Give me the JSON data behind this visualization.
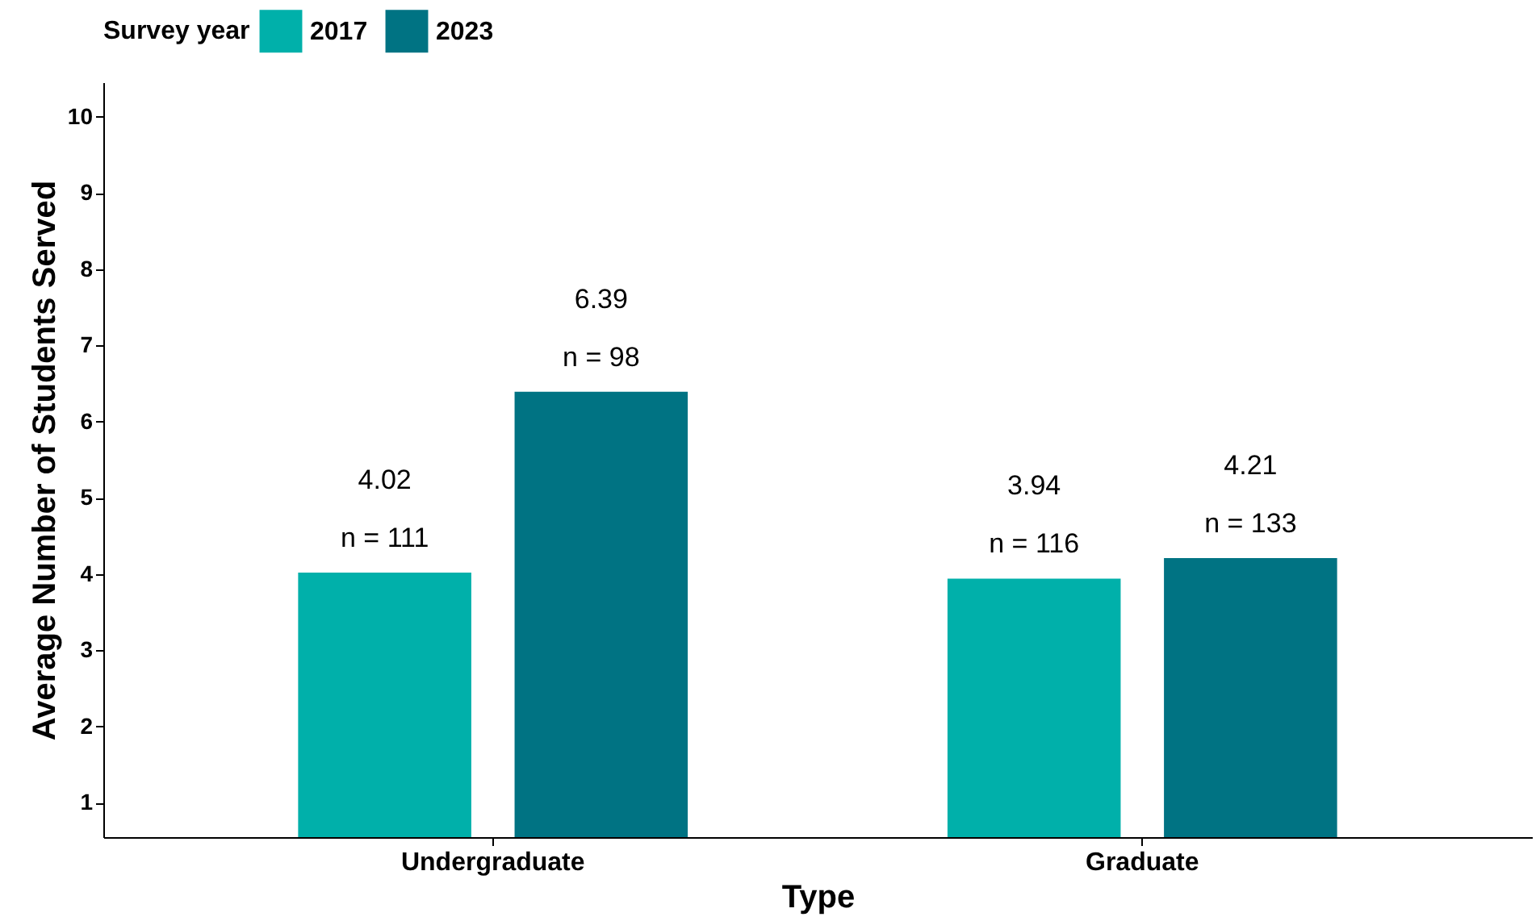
{
  "chart_data": {
    "type": "bar",
    "xlabel": "Type",
    "ylabel": "Average Number of Students Served",
    "legend_title": "Survey year",
    "legend": "top",
    "categories": [
      "Undergraduate",
      "Graduate"
    ],
    "series": [
      {
        "name": "2017",
        "color": "#00b0aa",
        "values": [
          4.02,
          3.94
        ]
      },
      {
        "name": "2023",
        "color": "#007383",
        "values": [
          6.39,
          4.21
        ]
      }
    ],
    "ylim": [
      0.55,
      10.45
    ],
    "yticks": [
      1,
      2,
      3,
      4,
      5,
      6,
      7,
      8,
      9,
      10
    ],
    "grid": false,
    "data_labels": true,
    "annotations": [
      "n = 111",
      "n = 116",
      "n = 98",
      "n = 133"
    ]
  }
}
